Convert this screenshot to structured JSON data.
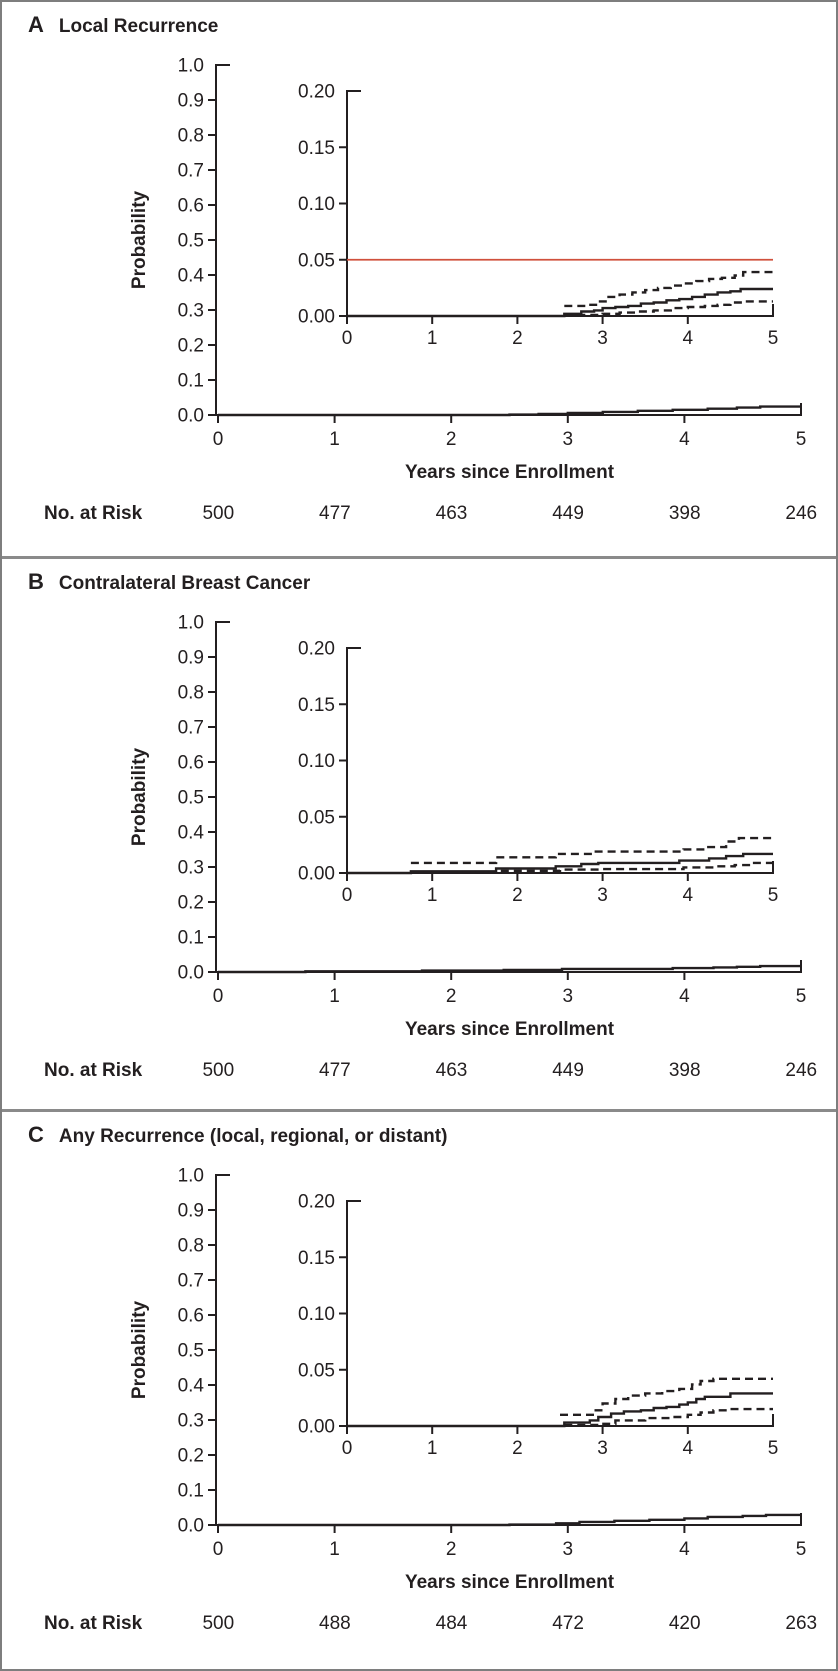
{
  "figure": {
    "background": "#ffffff",
    "border_color": "#7e7e7e",
    "text_color": "#231f20",
    "curve_color": "#231f20",
    "reference_line_color": "#d0503c"
  },
  "chart_data": [
    {
      "type": "line",
      "panel_letter": "A",
      "title": "Local Recurrence",
      "ylabel": "Probability",
      "xlabel": "Years since Enrollment",
      "xlim": [
        0,
        5
      ],
      "ylim": [
        0.0,
        1.0
      ],
      "xticklabels": [
        "0",
        "1",
        "2",
        "3",
        "4",
        "5"
      ],
      "yticklabels": [
        "1.0",
        "0.9",
        "0.8",
        "0.7",
        "0.6",
        "0.5",
        "0.4",
        "0.3",
        "0.2",
        "0.1",
        "0.0"
      ],
      "main_series": [
        {
          "name": "cumulative-incidence",
          "style": "solid",
          "points": [
            [
              0,
              0
            ],
            [
              2.5,
              0.001
            ],
            [
              2.75,
              0.003
            ],
            [
              3.0,
              0.006
            ],
            [
              3.3,
              0.009
            ],
            [
              3.6,
              0.012
            ],
            [
              3.9,
              0.015
            ],
            [
              4.2,
              0.018
            ],
            [
              4.45,
              0.021
            ],
            [
              4.65,
              0.024
            ],
            [
              5,
              0.024
            ]
          ]
        }
      ],
      "inset": {
        "ylim": [
          0.0,
          0.2
        ],
        "yticklabels": [
          "0.20",
          "0.15",
          "0.10",
          "0.05",
          "0.00"
        ],
        "xticklabels": [
          "0",
          "1",
          "2",
          "3",
          "4",
          "5"
        ],
        "reference_line": {
          "y": 0.05,
          "color": "#d0503c"
        },
        "series": [
          {
            "name": "cumulative-incidence",
            "style": "solid",
            "points": [
              [
                0,
                0
              ],
              [
                2.55,
                0.002
              ],
              [
                2.75,
                0.004
              ],
              [
                2.9,
                0.005
              ],
              [
                3.0,
                0.007
              ],
              [
                3.15,
                0.008
              ],
              [
                3.3,
                0.009
              ],
              [
                3.45,
                0.011
              ],
              [
                3.6,
                0.012
              ],
              [
                3.75,
                0.014
              ],
              [
                3.9,
                0.015
              ],
              [
                4.05,
                0.017
              ],
              [
                4.2,
                0.019
              ],
              [
                4.35,
                0.021
              ],
              [
                4.5,
                0.022
              ],
              [
                4.62,
                0.024
              ],
              [
                5,
                0.024
              ]
            ]
          },
          {
            "name": "upper-95ci",
            "style": "dashed",
            "points": [
              [
                2.55,
                0.009
              ],
              [
                2.8,
                0.01
              ],
              [
                2.95,
                0.013
              ],
              [
                3.05,
                0.017
              ],
              [
                3.2,
                0.019
              ],
              [
                3.35,
                0.021
              ],
              [
                3.5,
                0.023
              ],
              [
                3.65,
                0.025
              ],
              [
                3.8,
                0.027
              ],
              [
                3.95,
                0.029
              ],
              [
                4.1,
                0.031
              ],
              [
                4.25,
                0.033
              ],
              [
                4.4,
                0.034
              ],
              [
                4.55,
                0.036
              ],
              [
                4.65,
                0.039
              ],
              [
                5,
                0.039
              ]
            ]
          },
          {
            "name": "lower-95ci",
            "style": "dashed",
            "points": [
              [
                2.55,
                0.001
              ],
              [
                3.0,
                0.002
              ],
              [
                3.2,
                0.003
              ],
              [
                3.4,
                0.004
              ],
              [
                3.6,
                0.005
              ],
              [
                3.8,
                0.007
              ],
              [
                4.0,
                0.008
              ],
              [
                4.2,
                0.009
              ],
              [
                4.35,
                0.01
              ],
              [
                4.5,
                0.012
              ],
              [
                4.65,
                0.013
              ],
              [
                5,
                0.013
              ]
            ]
          }
        ]
      },
      "no_at_risk": {
        "label": "No. at Risk",
        "values": [
          "500",
          "477",
          "463",
          "449",
          "398",
          "246"
        ]
      }
    },
    {
      "type": "line",
      "panel_letter": "B",
      "title": "Contralateral Breast Cancer",
      "ylabel": "Probability",
      "xlabel": "Years since Enrollment",
      "xlim": [
        0,
        5
      ],
      "ylim": [
        0.0,
        1.0
      ],
      "xticklabels": [
        "0",
        "1",
        "2",
        "3",
        "4",
        "5"
      ],
      "yticklabels": [
        "1.0",
        "0.9",
        "0.8",
        "0.7",
        "0.6",
        "0.5",
        "0.4",
        "0.3",
        "0.2",
        "0.1",
        "0.0"
      ],
      "main_series": [
        {
          "name": "cumulative-incidence",
          "style": "solid",
          "points": [
            [
              0,
              0
            ],
            [
              0.75,
              0.002
            ],
            [
              1.75,
              0.004
            ],
            [
              2.45,
              0.006
            ],
            [
              2.95,
              0.009
            ],
            [
              3.9,
              0.011
            ],
            [
              4.25,
              0.013
            ],
            [
              4.45,
              0.015
            ],
            [
              4.65,
              0.017
            ],
            [
              5,
              0.017
            ]
          ]
        }
      ],
      "inset": {
        "ylim": [
          0.0,
          0.2
        ],
        "yticklabels": [
          "0.20",
          "0.15",
          "0.10",
          "0.05",
          "0.00"
        ],
        "xticklabels": [
          "0",
          "1",
          "2",
          "3",
          "4",
          "5"
        ],
        "reference_line": null,
        "series": [
          {
            "name": "cumulative-incidence",
            "style": "solid",
            "points": [
              [
                0,
                0
              ],
              [
                0.75,
                0.0015
              ],
              [
                1.75,
                0.004
              ],
              [
                2.45,
                0.006
              ],
              [
                2.75,
                0.008
              ],
              [
                2.95,
                0.009
              ],
              [
                3.9,
                0.011
              ],
              [
                4.25,
                0.013
              ],
              [
                4.45,
                0.015
              ],
              [
                4.65,
                0.017
              ],
              [
                5,
                0.017
              ]
            ]
          },
          {
            "name": "upper-95ci",
            "style": "dashed",
            "points": [
              [
                0.75,
                0.009
              ],
              [
                1.75,
                0.014
              ],
              [
                2.45,
                0.017
              ],
              [
                2.9,
                0.019
              ],
              [
                3.95,
                0.021
              ],
              [
                4.2,
                0.023
              ],
              [
                4.45,
                0.028
              ],
              [
                4.6,
                0.031
              ],
              [
                5,
                0.031
              ]
            ]
          },
          {
            "name": "lower-95ci",
            "style": "dashed",
            "points": [
              [
                0.75,
                0.001
              ],
              [
                1.8,
                0.002
              ],
              [
                2.5,
                0.003
              ],
              [
                3.0,
                0.0035
              ],
              [
                3.95,
                0.005
              ],
              [
                4.3,
                0.006
              ],
              [
                4.55,
                0.007
              ],
              [
                4.75,
                0.009
              ],
              [
                5,
                0.009
              ]
            ]
          }
        ]
      },
      "no_at_risk": {
        "label": "No. at Risk",
        "values": [
          "500",
          "477",
          "463",
          "449",
          "398",
          "246"
        ]
      }
    },
    {
      "type": "line",
      "panel_letter": "C",
      "title": "Any Recurrence (local, regional, or distant)",
      "ylabel": "Probability",
      "xlabel": "Years since Enrollment",
      "xlim": [
        0,
        5
      ],
      "ylim": [
        0.0,
        1.0
      ],
      "xticklabels": [
        "0",
        "1",
        "2",
        "3",
        "4",
        "5"
      ],
      "yticklabels": [
        "1.0",
        "0.9",
        "0.8",
        "0.7",
        "0.6",
        "0.5",
        "0.4",
        "0.3",
        "0.2",
        "0.1",
        "0.0"
      ],
      "main_series": [
        {
          "name": "cumulative-incidence",
          "style": "solid",
          "points": [
            [
              0,
              0
            ],
            [
              2.5,
              0.001
            ],
            [
              2.9,
              0.005
            ],
            [
              3.1,
              0.009
            ],
            [
              3.4,
              0.012
            ],
            [
              3.7,
              0.015
            ],
            [
              4.0,
              0.019
            ],
            [
              4.2,
              0.023
            ],
            [
              4.5,
              0.026
            ],
            [
              4.7,
              0.029
            ],
            [
              5,
              0.029
            ]
          ]
        }
      ],
      "inset": {
        "ylim": [
          0.0,
          0.2
        ],
        "yticklabels": [
          "0.20",
          "0.15",
          "0.10",
          "0.05",
          "0.00"
        ],
        "xticklabels": [
          "0",
          "1",
          "2",
          "3",
          "4",
          "5"
        ],
        "reference_line": null,
        "series": [
          {
            "name": "cumulative-incidence",
            "style": "solid",
            "points": [
              [
                0,
                0
              ],
              [
                2.55,
                0.003
              ],
              [
                2.85,
                0.005
              ],
              [
                2.95,
                0.008
              ],
              [
                3.1,
                0.011
              ],
              [
                3.25,
                0.013
              ],
              [
                3.45,
                0.014
              ],
              [
                3.6,
                0.016
              ],
              [
                3.75,
                0.017
              ],
              [
                3.9,
                0.019
              ],
              [
                4.0,
                0.021
              ],
              [
                4.1,
                0.024
              ],
              [
                4.2,
                0.026
              ],
              [
                4.5,
                0.029
              ],
              [
                5,
                0.029
              ]
            ]
          },
          {
            "name": "upper-95ci",
            "style": "dashed",
            "points": [
              [
                2.5,
                0.01
              ],
              [
                2.9,
                0.014
              ],
              [
                3.0,
                0.02
              ],
              [
                3.15,
                0.024
              ],
              [
                3.3,
                0.027
              ],
              [
                3.5,
                0.029
              ],
              [
                3.7,
                0.031
              ],
              [
                3.9,
                0.033
              ],
              [
                4.05,
                0.037
              ],
              [
                4.15,
                0.04
              ],
              [
                4.3,
                0.042
              ],
              [
                5,
                0.042
              ]
            ]
          },
          {
            "name": "lower-95ci",
            "style": "dashed",
            "points": [
              [
                2.55,
                0.001
              ],
              [
                2.95,
                0.002
              ],
              [
                3.15,
                0.005
              ],
              [
                3.5,
                0.007
              ],
              [
                3.8,
                0.008
              ],
              [
                4.0,
                0.01
              ],
              [
                4.15,
                0.012
              ],
              [
                4.3,
                0.014
              ],
              [
                4.5,
                0.015
              ],
              [
                5,
                0.015
              ]
            ]
          }
        ]
      },
      "no_at_risk": {
        "label": "No. at Risk",
        "values": [
          "500",
          "488",
          "484",
          "472",
          "420",
          "263"
        ]
      }
    }
  ]
}
